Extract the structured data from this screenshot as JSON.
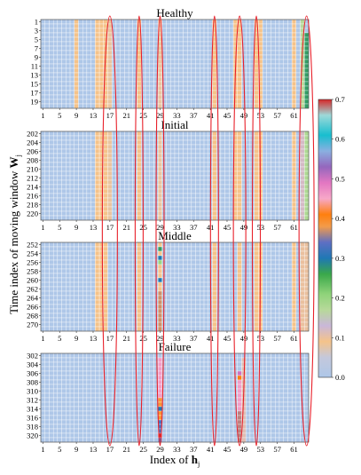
{
  "chart_data": {
    "type": "heatmap",
    "ylabel_text": "Time index of moving window",
    "ylabel_symbol": "W",
    "ylabel_subscript": "j",
    "xlabel_text": "Index of",
    "xlabel_symbol": "h",
    "xlabel_subscript": "j",
    "xticks": [
      "1",
      "5",
      "9",
      "13",
      "17",
      "21",
      "25",
      "29",
      "33",
      "37",
      "41",
      "45",
      "49",
      "53",
      "57",
      "61"
    ],
    "n_columns": 64,
    "colorbar": {
      "ticks": [
        "0.0",
        "0.1",
        "0.2",
        "0.3",
        "0.4",
        "0.5",
        "0.6",
        "0.7"
      ],
      "range": [
        0,
        0.7
      ],
      "stops": [
        [
          0.0,
          "#aec7e8"
        ],
        [
          0.05,
          "#c4c8dc"
        ],
        [
          0.09,
          "#f5c38a"
        ],
        [
          0.13,
          "#c9b7d9"
        ],
        [
          0.17,
          "#b7d99a"
        ],
        [
          0.21,
          "#8fd37a"
        ],
        [
          0.26,
          "#3aa84a"
        ],
        [
          0.3,
          "#1f78b4"
        ],
        [
          0.34,
          "#5e6fc4"
        ],
        [
          0.38,
          "#f39b4a"
        ],
        [
          0.41,
          "#ff7f0e"
        ],
        [
          0.45,
          "#f7a8c8"
        ],
        [
          0.49,
          "#e377c2"
        ],
        [
          0.53,
          "#9467bd"
        ],
        [
          0.57,
          "#8ab0e0"
        ],
        [
          0.61,
          "#17becf"
        ],
        [
          0.66,
          "#9ed9d9"
        ],
        [
          0.7,
          "#d62728"
        ]
      ]
    },
    "highlighted_columns": [
      17,
      24,
      29,
      42,
      48,
      52,
      64
    ],
    "panels": [
      {
        "title": "Healthy",
        "yticks": [
          "1",
          "3",
          "5",
          "7",
          "9",
          "11",
          "13",
          "15",
          "17",
          "19"
        ],
        "n_rows": 20,
        "column_values": [
          {
            "cols": [
              9,
              14,
              15,
              16,
              24,
              42,
              47,
              48,
              52,
              53,
              61
            ],
            "value": 0.09
          },
          {
            "cols": [
              17,
              29
            ],
            "value": 0.08
          }
        ],
        "cell_values": [
          {
            "col": 64,
            "rows": [
              4,
              20
            ],
            "value": 0.27
          }
        ],
        "extra_columns": [
          {
            "col": 63,
            "value": 0.17
          }
        ]
      },
      {
        "title": "Initial",
        "yticks": [
          "202",
          "204",
          "206",
          "208",
          "210",
          "212",
          "214",
          "216",
          "218",
          "220"
        ],
        "n_rows": 20,
        "column_values": [
          {
            "cols": [
              14,
              15,
              16,
              24,
              42,
              47,
              48,
              52,
              53,
              61
            ],
            "value": 0.09
          },
          {
            "cols": [
              17,
              29
            ],
            "value": 0.08
          },
          {
            "cols": [
              64
            ],
            "value": 0.18
          },
          {
            "cols": [
              63
            ],
            "value": 0.12
          }
        ],
        "cell_values": []
      },
      {
        "title": "Middle",
        "yticks": [
          "252",
          "254",
          "256",
          "258",
          "260",
          "262",
          "264",
          "266",
          "268",
          "270"
        ],
        "n_rows": 20,
        "column_values": [
          {
            "cols": [
              14,
              15,
              16,
              24,
              42,
              48,
              52,
              53,
              61
            ],
            "value": 0.09
          },
          {
            "cols": [
              29
            ],
            "value": 0.09
          },
          {
            "cols": [
              63,
              64
            ],
            "value": 0.1
          }
        ],
        "cell_values": [
          {
            "col": 29,
            "row": 2,
            "value": 0.27
          },
          {
            "col": 29,
            "row": 4,
            "value": 0.3
          },
          {
            "col": 29,
            "row": 5,
            "value": 0.2
          },
          {
            "col": 29,
            "row": 9,
            "value": 0.3
          },
          {
            "col": 29,
            "rows": [
              12,
              20
            ],
            "value": 0.37
          }
        ]
      },
      {
        "title": "Failure",
        "yticks": [
          "302",
          "304",
          "306",
          "308",
          "310",
          "312",
          "314",
          "316",
          "318",
          "320"
        ],
        "n_rows": 20,
        "column_values": [],
        "cell_values": [
          {
            "col": 29,
            "rows": [
              2,
              10
            ],
            "value": 0.46
          },
          {
            "col": 29,
            "rows": [
              11,
              15
            ],
            "value": 0.39
          },
          {
            "col": 29,
            "row": 13,
            "value": 0.3
          },
          {
            "col": 29,
            "rows": [
              16,
              20
            ],
            "value": 0.33
          },
          {
            "col": 29,
            "row": 19,
            "value": 0.7
          },
          {
            "col": 48,
            "row": 5,
            "value": 0.5
          },
          {
            "col": 48,
            "row": 6,
            "value": 0.41
          },
          {
            "col": 48,
            "rows": [
              7,
              13
            ],
            "value": 0.46
          },
          {
            "col": 48,
            "rows": [
              14,
              20
            ],
            "value": 0.68
          },
          {
            "col": 49,
            "rows": [
              2,
              20
            ],
            "value": 0.11
          }
        ]
      }
    ]
  }
}
